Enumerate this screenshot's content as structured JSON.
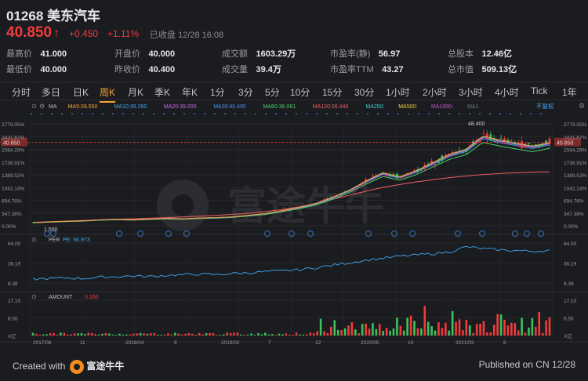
{
  "header": {
    "code": "01268",
    "name": "美东汽车",
    "price": "40.850",
    "price_arrow": "↑",
    "change": "+0.450",
    "change_pct": "+1.11%",
    "status": "已收盘",
    "datetime": "12/28 16:08"
  },
  "stats": [
    {
      "label": "最高价",
      "value": "41.000",
      "tone": "up"
    },
    {
      "label": "开盘价",
      "value": "40.000",
      "tone": "gn"
    },
    {
      "label": "成交额",
      "value": "1603.29万",
      "tone": "plain"
    },
    {
      "label": "市盈率(静)",
      "value": "56.97",
      "tone": "plain"
    },
    {
      "label": "总股本",
      "value": "12.46亿",
      "tone": "plain"
    },
    {
      "label": "最低价",
      "value": "40.000",
      "tone": "gn"
    },
    {
      "label": "昨收价",
      "value": "40.400",
      "tone": "plain"
    },
    {
      "label": "成交量",
      "value": "39.4万",
      "tone": "plain"
    },
    {
      "label": "市盈率TTM",
      "value": "43.27",
      "tone": "plain"
    },
    {
      "label": "总市值",
      "value": "509.13亿",
      "tone": "plain"
    }
  ],
  "tabs": [
    "分时",
    "多日",
    "日K",
    "周K",
    "月K",
    "季K",
    "年K",
    "1分",
    "3分",
    "5分",
    "10分",
    "15分",
    "30分",
    "1小时",
    "2小时",
    "3小时",
    "4小时",
    "Tick",
    "1年"
  ],
  "active_tab": "周K",
  "ma_legend": [
    {
      "label": "MA",
      "value": "",
      "color": "#bdbdc2"
    },
    {
      "label": "MA5:",
      "value": "39.550",
      "color": "#f7a232"
    },
    {
      "label": "MA10:",
      "value": "39.260",
      "color": "#3fa8f5"
    },
    {
      "label": "MA20:",
      "value": "39.000",
      "color": "#c66cf2"
    },
    {
      "label": "MA30:",
      "value": "40.495",
      "color": "#4a8ef0"
    },
    {
      "label": "MA60:",
      "value": "36.061",
      "color": "#4cd06a"
    },
    {
      "label": "MA120:",
      "value": "26.440",
      "color": "#ef5f5f"
    },
    {
      "label": "MA250:",
      "value": "",
      "color": "#3fd0d0"
    },
    {
      "label": "MA500:",
      "value": "",
      "color": "#f5d23a"
    },
    {
      "label": "MA1000:",
      "value": "",
      "color": "#c45cc4"
    },
    {
      "label": "MA1",
      "value": "",
      "color": "#777a80"
    }
  ],
  "adjust_label": "不复权",
  "per_legend": {
    "label": "PER",
    "sub": "PE: 56.973",
    "color": "#3fa8f5"
  },
  "amount_legend": {
    "label": "AMOUNT",
    "sub": "0.160",
    "color": "#f23b3b"
  },
  "main_axis": [
    "2779.05%",
    "2431.67%",
    "2084.29%",
    "1736.91%",
    "1389.52%",
    "1042.14%",
    "694.76%",
    "347.38%",
    "0.00%"
  ],
  "current_tag": "40.850",
  "marker_high": "48.400",
  "marker_low": "1.590",
  "per_axis": [
    "64.00",
    "36.19",
    "8.38"
  ],
  "amount_axis": [
    "17.10",
    "8.55",
    "X亿"
  ],
  "x_labels": [
    "2017/06",
    "11",
    "2018/04",
    "9",
    "2019/02",
    "7",
    "12",
    "2020/05",
    "10",
    "2021/03",
    "8"
  ],
  "event_icons": [
    "e",
    "e",
    "e",
    "e",
    "e",
    "e",
    "e",
    "e",
    "e",
    "e",
    "e",
    "e",
    "e",
    "e",
    "e",
    "e",
    "e"
  ],
  "watermark": "富途牛牛",
  "footer": {
    "created_with": "Created with",
    "brand": "富途牛牛",
    "published": "Published on CN 12/28"
  },
  "colors": {
    "up": "#f23b3b",
    "down": "#3cc35a",
    "accent": "#f7a232",
    "bg": "#1b1c20"
  },
  "chart_data": {
    "type": "candlestick",
    "x_labels": [
      "2017/06",
      "11",
      "2018/04",
      "9",
      "2019/02",
      "7",
      "12",
      "2020/05",
      "10",
      "2021/03",
      "8"
    ],
    "price_path": [
      1.6,
      1.9,
      2.2,
      2.4,
      2.9,
      3.2,
      3.0,
      3.3,
      3.6,
      3.4,
      3.8,
      4.0,
      4.4,
      5.2,
      6.0,
      7.5,
      9.0,
      11.0,
      14.0,
      17.5,
      22.0,
      26.0,
      24.0,
      27.0,
      31.0,
      35.0,
      37.5,
      44.0,
      42.0,
      40.5,
      39.0,
      40.85
    ],
    "ma120_path": [
      1.7,
      2.0,
      2.3,
      2.6,
      2.9,
      3.2,
      3.4,
      3.7,
      4.0,
      4.3,
      4.7,
      5.1,
      5.6,
      6.2,
      7.0,
      8.0,
      9.3,
      11.0,
      13.0,
      15.0,
      17.0,
      18.8,
      20.2,
      21.5,
      22.6,
      23.6,
      24.4,
      25.1,
      25.6,
      26.0,
      26.3,
      26.44
    ],
    "pe_path": [
      12,
      13,
      14,
      13,
      15,
      16,
      17,
      16,
      18,
      19,
      20,
      19,
      21,
      22,
      24,
      25,
      27,
      30,
      34,
      38,
      42,
      45,
      48,
      50,
      52,
      55,
      63,
      60,
      58,
      57,
      56,
      56.97
    ],
    "ylim_pct": [
      0,
      2779.05
    ],
    "pe_range": [
      8.38,
      64.0
    ],
    "amount_range_100m": [
      0,
      17.1
    ]
  }
}
